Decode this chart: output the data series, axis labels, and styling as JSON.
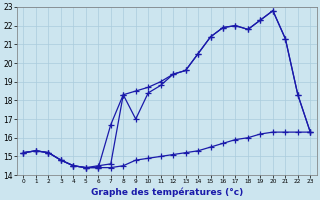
{
  "xlabel": "Graphe des températures (°c)",
  "xlim": [
    -0.5,
    23.5
  ],
  "ylim": [
    14,
    23
  ],
  "yticks": [
    14,
    15,
    16,
    17,
    18,
    19,
    20,
    21,
    22,
    23
  ],
  "xticks": [
    0,
    1,
    2,
    3,
    4,
    5,
    6,
    7,
    8,
    9,
    10,
    11,
    12,
    13,
    14,
    15,
    16,
    17,
    18,
    19,
    20,
    21,
    22,
    23
  ],
  "bg_color": "#cce5ef",
  "grid_color": "#aaccdd",
  "line_color": "#1a1aaa",
  "line1_x": [
    0,
    1,
    2,
    3,
    4,
    5,
    6,
    7,
    8,
    9,
    10,
    11,
    12,
    13,
    14,
    15,
    16,
    17,
    18,
    19,
    20,
    21,
    22,
    23
  ],
  "line1_y": [
    15.2,
    15.3,
    15.2,
    14.8,
    14.5,
    14.4,
    14.4,
    14.4,
    14.5,
    14.8,
    14.9,
    15.0,
    15.1,
    15.2,
    15.3,
    15.5,
    15.7,
    15.9,
    16.0,
    16.2,
    16.3,
    16.3,
    16.3,
    16.3
  ],
  "line2_x": [
    0,
    1,
    2,
    3,
    4,
    5,
    6,
    7,
    8,
    9,
    10,
    11,
    12,
    13,
    14,
    15,
    16,
    17,
    18,
    19,
    20,
    21,
    22,
    23
  ],
  "line2_y": [
    15.2,
    15.3,
    15.2,
    14.8,
    14.5,
    14.4,
    14.4,
    16.7,
    18.3,
    17.0,
    18.4,
    18.8,
    19.4,
    19.6,
    20.5,
    21.4,
    21.9,
    22.0,
    21.8,
    22.3,
    22.8,
    21.3,
    18.3,
    16.3
  ],
  "line3_x": [
    0,
    1,
    2,
    3,
    4,
    5,
    6,
    7,
    8,
    9,
    10,
    11,
    12,
    13,
    14,
    15,
    16,
    17,
    18,
    19,
    20,
    21,
    22,
    23
  ],
  "line3_y": [
    15.2,
    15.3,
    15.2,
    14.8,
    14.5,
    14.4,
    14.5,
    14.6,
    18.3,
    18.5,
    18.7,
    19.0,
    19.4,
    19.6,
    20.5,
    21.4,
    21.9,
    22.0,
    21.8,
    22.3,
    22.8,
    21.3,
    18.3,
    16.3
  ]
}
